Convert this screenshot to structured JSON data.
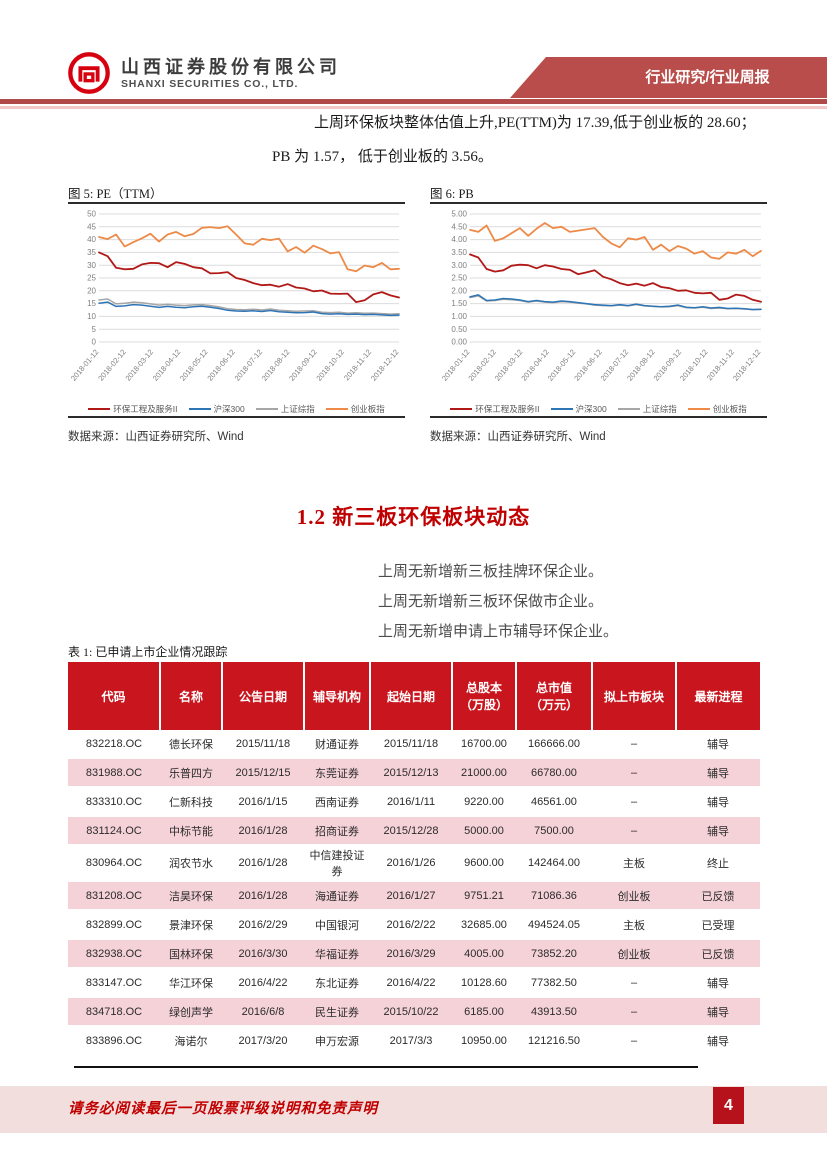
{
  "header": {
    "company_cn": "山西证券股份有限公司",
    "company_en": "SHANXI SECURITIES CO., LTD.",
    "banner": "行业研究/行业周报"
  },
  "intro": {
    "line1": "上周环保板块整体估值上升,PE(TTM)为 17.39,低于创业板的 28.60；",
    "line2": "PB 为 1.57， 低于创业板的 3.56。"
  },
  "section": {
    "heading": "1.2 新三板环保板块动态"
  },
  "bullets": [
    "上周无新增新三板挂牌环保企业。",
    "上周无新增新三板环保做市企业。",
    "上周无新增申请上市辅导环保企业。"
  ],
  "table": {
    "title": "表 1: 已申请上市企业情况跟踪",
    "headers": [
      "代码",
      "名称",
      "公告日期",
      "辅导机构",
      "起始日期",
      "总股本|（万股）",
      "总市值|（万元）",
      "拟上市板块",
      "最新进程"
    ],
    "rows": [
      [
        "832218.OC",
        "德长环保",
        "2015/11/18",
        "财通证券",
        "2015/11/18",
        "16700.00",
        "166666.00",
        "–",
        "辅导"
      ],
      [
        "831988.OC",
        "乐普四方",
        "2015/12/15",
        "东莞证券",
        "2015/12/13",
        "21000.00",
        "66780.00",
        "–",
        "辅导"
      ],
      [
        "833310.OC",
        "仁新科技",
        "2016/1/15",
        "西南证券",
        "2016/1/11",
        "9220.00",
        "46561.00",
        "–",
        "辅导"
      ],
      [
        "831124.OC",
        "中标节能",
        "2016/1/28",
        "招商证券",
        "2015/12/28",
        "5000.00",
        "7500.00",
        "–",
        "辅导"
      ],
      [
        "830964.OC",
        "润农节水",
        "2016/1/28",
        "中信建投证券",
        "2016/1/26",
        "9600.00",
        "142464.00",
        "主板",
        "终止"
      ],
      [
        "831208.OC",
        "洁昊环保",
        "2016/1/28",
        "海通证券",
        "2016/1/27",
        "9751.21",
        "71086.36",
        "创业板",
        "已反馈"
      ],
      [
        "832899.OC",
        "景津环保",
        "2016/2/29",
        "中国银河",
        "2016/2/22",
        "32685.00",
        "494524.05",
        "主板",
        "已受理"
      ],
      [
        "832938.OC",
        "国林环保",
        "2016/3/30",
        "华福证券",
        "2016/3/29",
        "4005.00",
        "73852.20",
        "创业板",
        "已反馈"
      ],
      [
        "833147.OC",
        "华江环保",
        "2016/4/22",
        "东北证券",
        "2016/4/22",
        "10128.60",
        "77382.50",
        "–",
        "辅导"
      ],
      [
        "834718.OC",
        "绿创声学",
        "2016/6/8",
        "民生证券",
        "2015/10/22",
        "6185.00",
        "43913.50",
        "–",
        "辅导"
      ],
      [
        "833896.OC",
        "海诺尔",
        "2017/3/20",
        "申万宏源",
        "2017/3/3",
        "10950.00",
        "121216.50",
        "–",
        "辅导"
      ]
    ]
  },
  "footer": {
    "disclaimer": "请务必阅读最后一页股票评级说明和免责声明",
    "page": "4"
  },
  "chart_data": [
    {
      "type": "line",
      "title": "图 5: PE（TTM）",
      "source": "数据来源：山西证券研究所、Wind",
      "ylim": [
        0,
        50
      ],
      "ytick_step": 5,
      "y_decimals": 0,
      "grid": true,
      "legend_position": "bottom",
      "x_labels": [
        "2018-01-12",
        "2018-02-12",
        "2018-03-12",
        "2018-04-12",
        "2018-05-12",
        "2018-06-12",
        "2018-07-12",
        "2018-08-12",
        "2018-09-12",
        "2018-10-12",
        "2018-11-12",
        "2018-12-12"
      ],
      "series": [
        {
          "name": "环保工程及服务II",
          "color": "#B11917",
          "width": 1.8,
          "values": [
            35.0,
            33.5,
            29.0,
            28.4,
            28.6,
            30.3,
            30.9,
            30.8,
            29.2,
            31.2,
            30.5,
            29.2,
            28.8,
            26.8,
            26.9,
            27.3,
            25.0,
            24.2,
            23.0,
            22.2,
            22.4,
            21.6,
            22.6,
            21.3,
            20.9,
            19.8,
            20.1,
            18.9,
            18.8,
            18.9,
            15.6,
            16.3,
            18.6,
            19.5,
            18.2,
            17.4
          ]
        },
        {
          "name": "沪深300",
          "color": "#2E75B6",
          "width": 1.5,
          "values": [
            15.1,
            15.6,
            13.9,
            14.1,
            14.6,
            14.4,
            14.0,
            13.5,
            13.9,
            13.6,
            13.4,
            13.8,
            14.0,
            13.6,
            13.1,
            12.4,
            12.1,
            12.0,
            12.2,
            11.9,
            12.3,
            11.8,
            11.6,
            11.4,
            11.5,
            11.7,
            11.1,
            10.9,
            11.0,
            10.8,
            10.9,
            10.7,
            10.8,
            10.6,
            10.4,
            10.5
          ]
        },
        {
          "name": "上证综指",
          "color": "#A6A6A6",
          "width": 1.5,
          "values": [
            16.4,
            16.8,
            14.9,
            15.1,
            15.6,
            15.3,
            14.9,
            14.4,
            14.7,
            14.4,
            14.2,
            14.5,
            14.6,
            14.2,
            13.7,
            13.0,
            12.7,
            12.6,
            12.8,
            12.5,
            12.9,
            12.4,
            12.2,
            12.0,
            12.1,
            12.2,
            11.6,
            11.5,
            11.6,
            11.3,
            11.4,
            11.2,
            11.3,
            11.1,
            10.9,
            11.0
          ]
        },
        {
          "name": "创业板指",
          "color": "#ED8A48",
          "width": 1.8,
          "values": [
            41.0,
            40.2,
            42.0,
            37.3,
            39.0,
            40.5,
            42.3,
            39.2,
            42.0,
            43.0,
            41.3,
            42.2,
            44.6,
            44.9,
            44.5,
            45.2,
            42.0,
            38.5,
            38.0,
            40.3,
            39.8,
            40.4,
            35.4,
            37.1,
            34.9,
            37.6,
            36.3,
            34.6,
            35.1,
            28.4,
            27.6,
            29.9,
            29.2,
            30.9,
            28.4,
            28.6
          ]
        }
      ]
    },
    {
      "type": "line",
      "title": "图 6: PB",
      "source": "数据来源：山西证券研究所、Wind",
      "ylim": [
        0,
        5
      ],
      "ytick_step": 0.5,
      "y_decimals": 2,
      "grid": true,
      "legend_position": "bottom",
      "x_labels": [
        "2018-01-12",
        "2018-02-12",
        "2018-03-12",
        "2018-04-12",
        "2018-05-12",
        "2018-06-12",
        "2018-07-12",
        "2018-08-12",
        "2018-09-12",
        "2018-10-12",
        "2018-11-12",
        "2018-12-12"
      ],
      "series": [
        {
          "name": "环保工程及服务II",
          "color": "#B11917",
          "width": 1.8,
          "values": [
            3.42,
            3.3,
            2.85,
            2.75,
            2.8,
            2.98,
            3.02,
            3.0,
            2.88,
            3.0,
            2.95,
            2.85,
            2.82,
            2.65,
            2.72,
            2.8,
            2.55,
            2.45,
            2.3,
            2.22,
            2.28,
            2.2,
            2.3,
            2.15,
            2.1,
            2.0,
            2.02,
            1.92,
            1.9,
            1.92,
            1.65,
            1.7,
            1.85,
            1.8,
            1.65,
            1.57
          ]
        },
        {
          "name": "沪深300",
          "color": "#2E75B6",
          "width": 1.5,
          "values": [
            1.76,
            1.84,
            1.62,
            1.64,
            1.7,
            1.68,
            1.64,
            1.58,
            1.62,
            1.58,
            1.56,
            1.6,
            1.58,
            1.54,
            1.5,
            1.46,
            1.44,
            1.42,
            1.46,
            1.42,
            1.48,
            1.42,
            1.4,
            1.38,
            1.4,
            1.44,
            1.36,
            1.34,
            1.38,
            1.33,
            1.35,
            1.31,
            1.32,
            1.3,
            1.27,
            1.28
          ]
        },
        {
          "name": "上证综指",
          "color": "#A6A6A6",
          "width": 1.5,
          "values": [
            1.74,
            1.8,
            1.6,
            1.62,
            1.67,
            1.65,
            1.62,
            1.56,
            1.6,
            1.56,
            1.54,
            1.58,
            1.56,
            1.52,
            1.49,
            1.44,
            1.42,
            1.41,
            1.44,
            1.41,
            1.46,
            1.41,
            1.39,
            1.37,
            1.38,
            1.42,
            1.34,
            1.33,
            1.36,
            1.31,
            1.33,
            1.3,
            1.31,
            1.29,
            1.26,
            1.27
          ]
        },
        {
          "name": "创业板指",
          "color": "#ED8A48",
          "width": 1.8,
          "values": [
            4.38,
            4.3,
            4.55,
            3.95,
            4.05,
            4.25,
            4.45,
            4.15,
            4.42,
            4.65,
            4.45,
            4.5,
            4.3,
            4.35,
            4.4,
            4.45,
            4.1,
            3.85,
            3.7,
            4.05,
            4.0,
            4.1,
            3.6,
            3.8,
            3.55,
            3.75,
            3.65,
            3.45,
            3.55,
            3.3,
            3.25,
            3.5,
            3.45,
            3.6,
            3.35,
            3.56
          ]
        }
      ]
    }
  ]
}
